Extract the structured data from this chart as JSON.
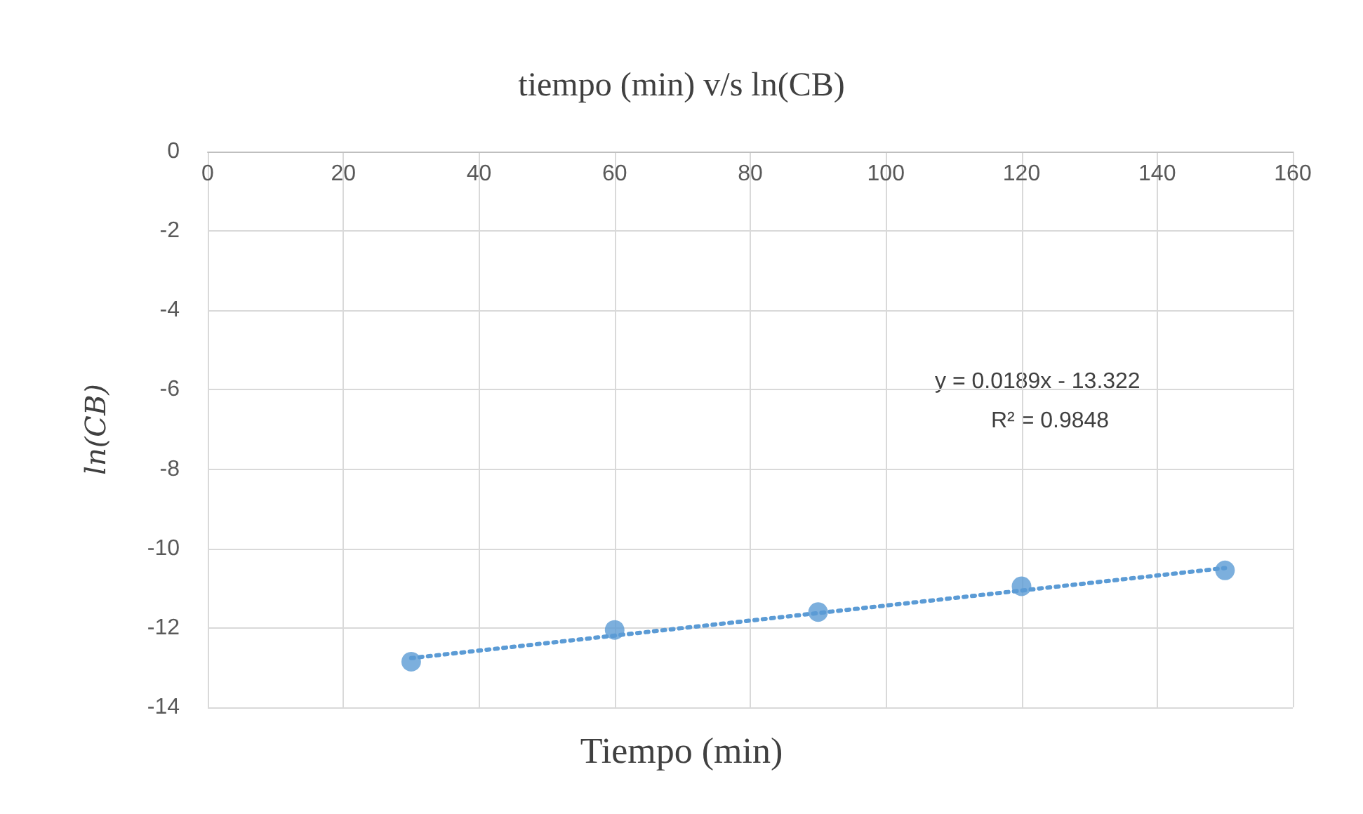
{
  "chart_data": {
    "type": "scatter",
    "title": "tiempo (min) v/s ln(CB)",
    "xlabel": "Tiempo (min)",
    "ylabel": "ln(CB)",
    "x": [
      30,
      60,
      90,
      120,
      150
    ],
    "series": [
      {
        "color": "#5b9bd5",
        "values": [
          -12.85,
          -12.05,
          -11.6,
          -10.95,
          -10.55
        ],
        "marker": "circle"
      },
      {
        "type": "line",
        "color": "#5b9bd5",
        "x": [
          30,
          150
        ],
        "values": [
          -12.76,
          -10.49
        ],
        "marker": "none",
        "line_style": "dotted"
      }
    ],
    "xlim": [
      0,
      160
    ],
    "xticks": [
      0,
      20,
      40,
      60,
      80,
      100,
      120,
      140,
      160
    ],
    "ylim": [
      -14,
      0
    ],
    "yticks": [
      -14,
      -12,
      -10,
      -8,
      -6,
      -4,
      -2,
      0
    ],
    "grid": true,
    "annotations": [
      "y = 0.0189x - 13.322",
      "R² = 0.9848"
    ]
  }
}
